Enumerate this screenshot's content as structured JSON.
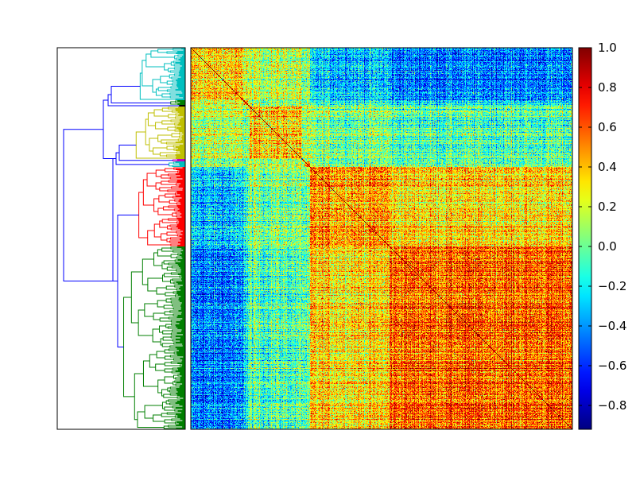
{
  "chart_data": {
    "type": "heatmap",
    "subtype": "clustered correlation matrix with row dendrogram",
    "title": "",
    "xlabel": "",
    "ylabel": "",
    "colormap": "jet",
    "vmin": -0.92,
    "vmax": 1.0,
    "colorbar_ticks": [
      1.0,
      0.8,
      0.6,
      0.4,
      0.2,
      0.0,
      -0.2,
      -0.4,
      -0.6,
      -0.8
    ],
    "colorbar_tick_labels": [
      "1.0",
      "0.8",
      "0.6",
      "0.4",
      "0.2",
      "0.0",
      "−0.2",
      "−0.4",
      "−0.6",
      "−0.8"
    ],
    "diagonal_value": 1.0,
    "grid": false,
    "n_items": 480,
    "clusters": [
      {
        "color": "#00bfbf",
        "start": 0,
        "end": 66
      },
      {
        "color": "#007f00",
        "start": 66,
        "end": 72
      },
      {
        "color": "#000000",
        "start": 72,
        "end": 74
      },
      {
        "color": "#bfbf00",
        "start": 74,
        "end": 140
      },
      {
        "color": "#bf00bf",
        "start": 140,
        "end": 143
      },
      {
        "color": "#00bfbf",
        "start": 143,
        "end": 150
      },
      {
        "color": "#ff0000",
        "start": 150,
        "end": 250
      },
      {
        "color": "#007f00",
        "start": 250,
        "end": 480
      }
    ],
    "block_correlations": [
      [
        0.3,
        0.25,
        0.1,
        0.15,
        0.0,
        0.05,
        -0.3,
        -0.45
      ],
      [
        0.25,
        0.6,
        0.2,
        0.1,
        0.0,
        0.05,
        -0.1,
        -0.2
      ],
      [
        0.1,
        0.2,
        0.6,
        0.1,
        0.0,
        0.05,
        0.0,
        -0.1
      ],
      [
        0.15,
        0.1,
        0.1,
        0.35,
        0.1,
        0.1,
        0.05,
        -0.05
      ],
      [
        0.0,
        0.0,
        0.0,
        0.1,
        0.4,
        0.1,
        0.0,
        0.0
      ],
      [
        0.05,
        0.05,
        0.05,
        0.1,
        0.1,
        0.4,
        0.0,
        -0.05
      ],
      [
        -0.3,
        -0.1,
        0.0,
        0.05,
        0.0,
        0.0,
        0.45,
        0.35
      ],
      [
        -0.45,
        -0.2,
        -0.1,
        -0.05,
        0.0,
        -0.05,
        0.35,
        0.55
      ]
    ],
    "dendrogram_link_color": "#0000ff"
  }
}
